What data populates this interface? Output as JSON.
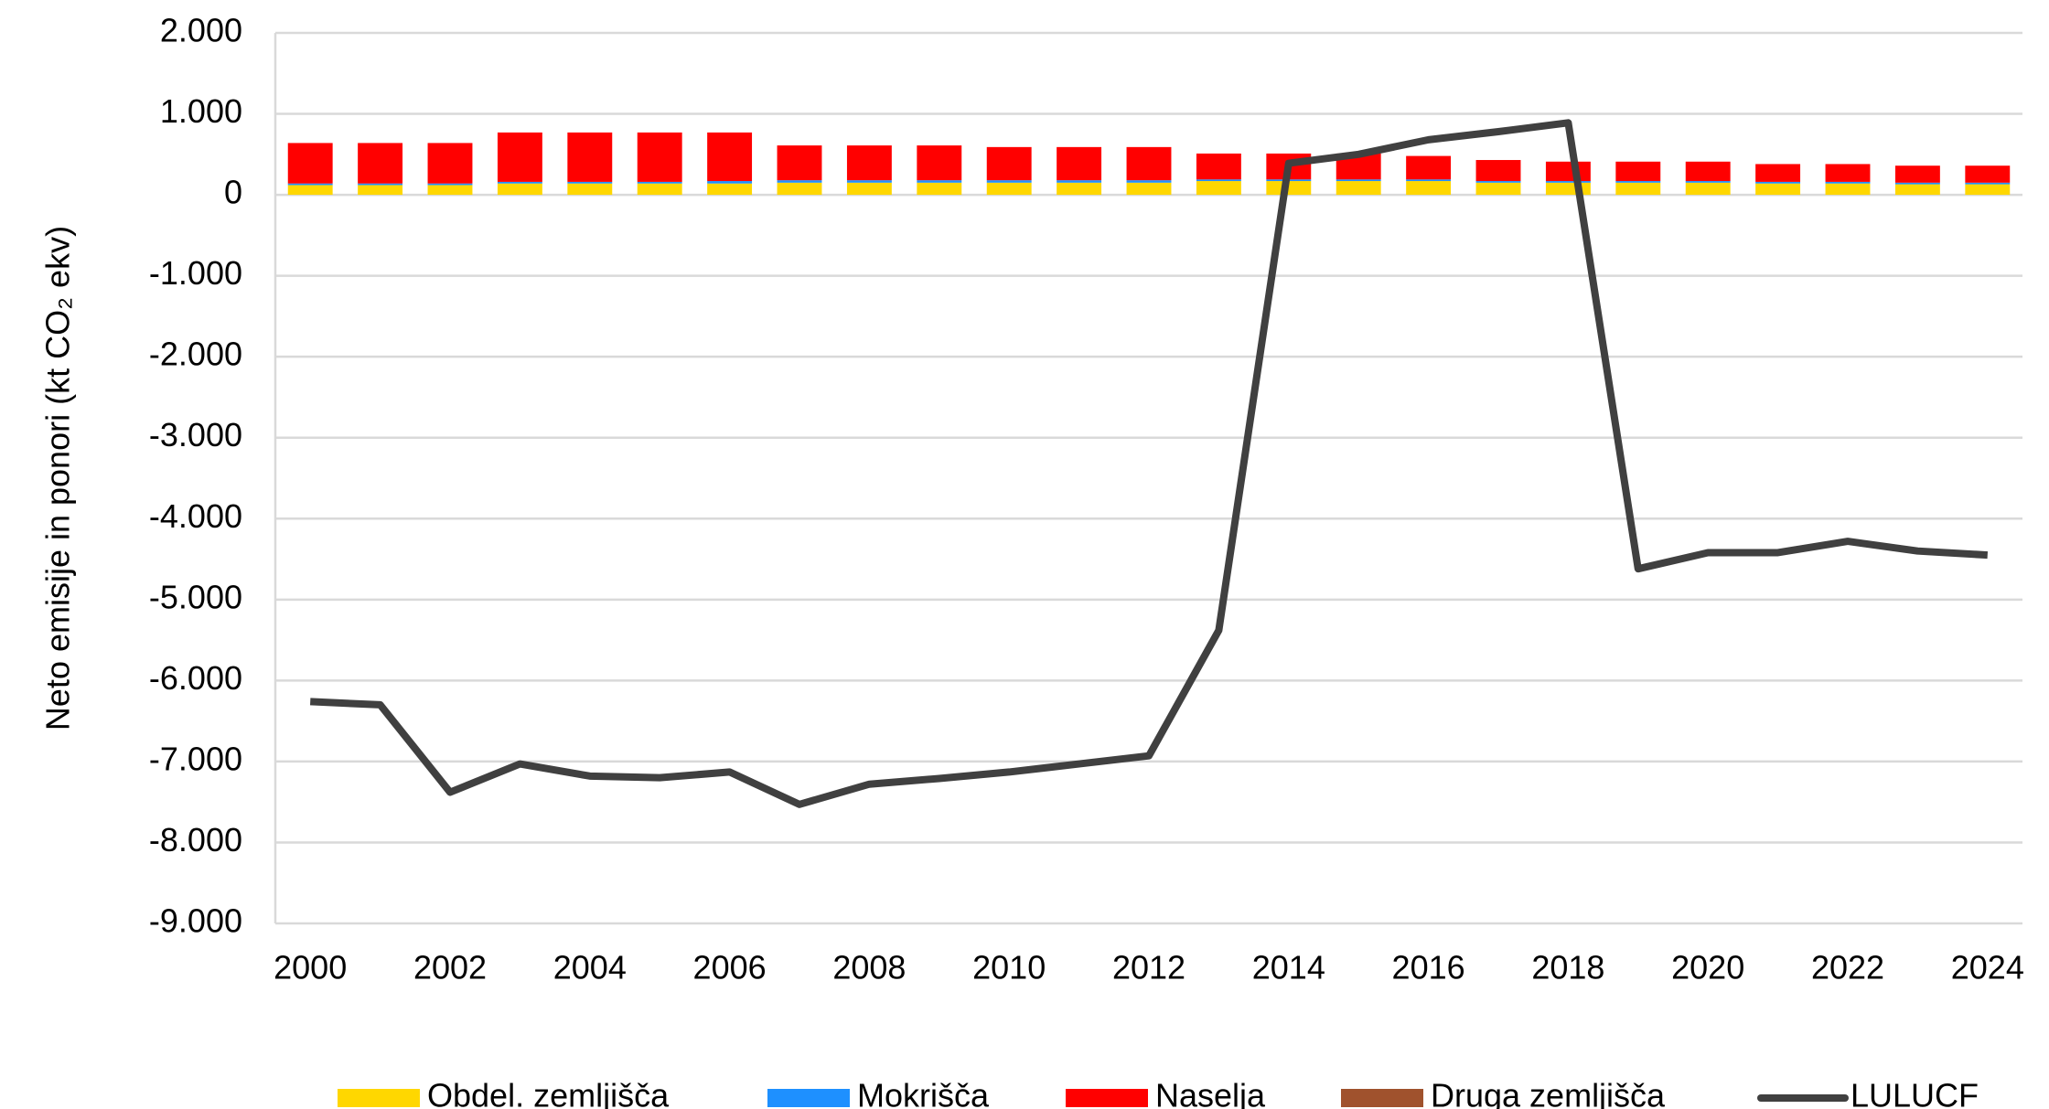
{
  "chart_data": {
    "type": "bar",
    "y_label": "Neto emisije in ponori (kt CO₂ ekv)",
    "categories": [
      "2000",
      null,
      "2002",
      null,
      "2004",
      null,
      "2006",
      null,
      "2008",
      null,
      "2010",
      null,
      "2012",
      null,
      "2014",
      null,
      "2016",
      null,
      "2018",
      null,
      "2020",
      null,
      "2022",
      null,
      "2024"
    ],
    "series": [
      {
        "name": "Obdel. zemljišča",
        "color": "#ffd700",
        "type": "bar",
        "values": [
          120,
          120,
          120,
          140,
          140,
          140,
          140,
          150,
          150,
          150,
          150,
          150,
          150,
          170,
          170,
          170,
          170,
          150,
          150,
          150,
          150,
          140,
          140,
          130,
          130
        ]
      },
      {
        "name": "Mokrišča",
        "color": "#1e90ff",
        "type": "bar",
        "values": [
          20,
          20,
          20,
          20,
          20,
          20,
          30,
          30,
          30,
          30,
          30,
          30,
          30,
          20,
          20,
          20,
          20,
          20,
          20,
          20,
          20,
          20,
          20,
          20,
          20
        ]
      },
      {
        "name": "Naselja",
        "color": "#ff0000",
        "type": "bar",
        "values": [
          500,
          500,
          500,
          610,
          610,
          610,
          600,
          430,
          430,
          430,
          410,
          410,
          410,
          320,
          320,
          320,
          290,
          260,
          240,
          240,
          240,
          220,
          220,
          210,
          210
        ]
      },
      {
        "name": "Druga zemljišča",
        "color": "#a0522d",
        "type": "bar",
        "values": [
          0,
          0,
          0,
          0,
          0,
          0,
          0,
          0,
          0,
          0,
          0,
          0,
          0,
          0,
          0,
          0,
          0,
          0,
          0,
          0,
          0,
          0,
          0,
          0,
          0
        ]
      },
      {
        "name": "LULUCF",
        "color": "#404040",
        "type": "line",
        "values": [
          -6260,
          -6300,
          -7380,
          -7030,
          -7180,
          -7200,
          -7130,
          -7530,
          -7280,
          -7210,
          -7130,
          -7030,
          -6930,
          -5380,
          390,
          500,
          680,
          780,
          890,
          -4620,
          -4420,
          -4420,
          -4280,
          -4400,
          -4450
        ]
      }
    ],
    "ylim": [
      -9000,
      2000
    ],
    "yticks": [
      {
        "value": -9000,
        "label": "-9.000"
      },
      {
        "value": -8000,
        "label": "-8.000"
      },
      {
        "value": -7000,
        "label": "-7.000"
      },
      {
        "value": -6000,
        "label": "-6.000"
      },
      {
        "value": -5000,
        "label": "-5.000"
      },
      {
        "value": -4000,
        "label": "-4.000"
      },
      {
        "value": -3000,
        "label": "-3.000"
      },
      {
        "value": -2000,
        "label": "-2.000"
      },
      {
        "value": -1000,
        "label": "-1.000"
      },
      0,
      {
        "value": 1000,
        "label": "1.000"
      },
      {
        "value": 2000,
        "label": "2.000"
      }
    ],
    "grid": true,
    "legend": "bottom"
  }
}
